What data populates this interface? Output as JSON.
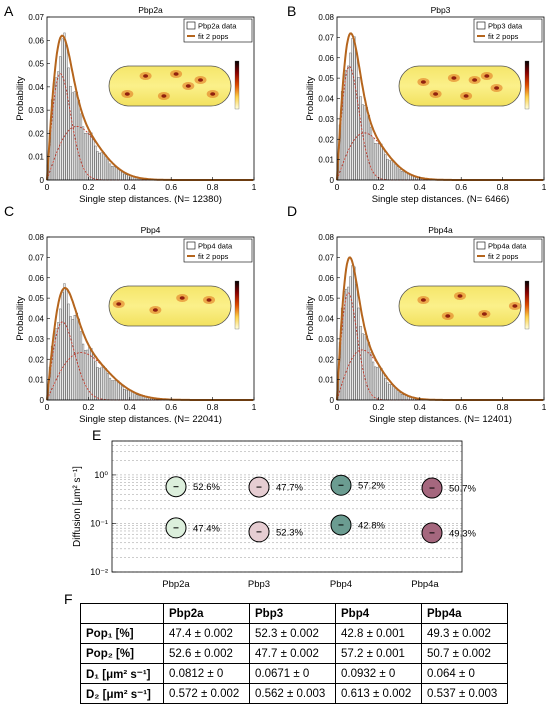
{
  "panels": [
    {
      "letter": "A",
      "title": "Pbp2a",
      "legend": [
        "Pbp2a data",
        "fit 2 pops"
      ],
      "xlabel": "Single step distances. (N= 12380)",
      "ylabel": "Probability"
    },
    {
      "letter": "B",
      "title": "Pbp3",
      "legend": [
        "Pbp3 data",
        "fit 2 pops"
      ],
      "xlabel": "Single step distances. (N= 6466)",
      "ylabel": "Probability"
    },
    {
      "letter": "C",
      "title": "Pbp4",
      "legend": [
        "Pbp4 data",
        "fit 2 pops"
      ],
      "xlabel": "Single step distances. (N= 22041)",
      "ylabel": "Probability"
    },
    {
      "letter": "D",
      "title": "Pbp4a",
      "legend": [
        "Pbp4a data",
        "fit 2 pops"
      ],
      "xlabel": "Single step distances. (N= 12401)",
      "ylabel": "Probability"
    }
  ],
  "panel_e_letter": "E",
  "panel_f_letter": "F",
  "chart_data": [
    {
      "type": "bar",
      "title": "Pbp2a",
      "xlim": [
        0,
        1
      ],
      "ylim": [
        0,
        0.07
      ],
      "xticks": [
        "0",
        "0.2",
        "0.4",
        "0.6",
        "0.8",
        "1"
      ],
      "yticks": [
        "0",
        "0.01",
        "0.02",
        "0.03",
        "0.04",
        "0.05",
        "0.06",
        "0.07"
      ],
      "peak_x": 0.065,
      "peak_y": 0.062,
      "tail_end_x": 0.55,
      "fit": {
        "name": "fit 2 pops",
        "d1": 0.0812,
        "d2": 0.572,
        "p1": 0.474,
        "p2": 0.526
      },
      "colors": {
        "hist": "#ddd",
        "fit": "#b5651d"
      }
    },
    {
      "type": "bar",
      "title": "Pbp3",
      "xlim": [
        0,
        1
      ],
      "ylim": [
        0,
        0.08
      ],
      "xticks": [
        "0",
        "0.2",
        "0.4",
        "0.6",
        "0.8",
        "1"
      ],
      "yticks": [
        "0",
        "0.01",
        "0.02",
        "0.03",
        "0.04",
        "0.05",
        "0.06",
        "0.07",
        "0.08"
      ],
      "peak_x": 0.06,
      "peak_y": 0.072,
      "tail_end_x": 0.55,
      "fit": {
        "name": "fit 2 pops",
        "d1": 0.0671,
        "d2": 0.562,
        "p1": 0.523,
        "p2": 0.477
      },
      "colors": {
        "hist": "#ddd",
        "fit": "#b5651d"
      }
    },
    {
      "type": "bar",
      "title": "Pbp4",
      "xlim": [
        0,
        1
      ],
      "ylim": [
        0,
        0.08
      ],
      "xticks": [
        "0",
        "0.2",
        "0.4",
        "0.6",
        "0.8",
        "1"
      ],
      "yticks": [
        "0",
        "0.01",
        "0.02",
        "0.03",
        "0.04",
        "0.05",
        "0.06",
        "0.07",
        "0.08"
      ],
      "peak_x": 0.075,
      "peak_y": 0.055,
      "tail_end_x": 0.55,
      "fit": {
        "name": "fit 2 pops",
        "d1": 0.0932,
        "d2": 0.613,
        "p1": 0.428,
        "p2": 0.572
      },
      "colors": {
        "hist": "#ddd",
        "fit": "#b5651d"
      }
    },
    {
      "type": "bar",
      "title": "Pbp4a",
      "xlim": [
        0,
        1
      ],
      "ylim": [
        0,
        0.08
      ],
      "xticks": [
        "0",
        "0.2",
        "0.4",
        "0.6",
        "0.8",
        "1"
      ],
      "yticks": [
        "0",
        "0.01",
        "0.02",
        "0.03",
        "0.04",
        "0.05",
        "0.06",
        "0.07",
        "0.08"
      ],
      "peak_x": 0.055,
      "peak_y": 0.07,
      "tail_end_x": 0.55,
      "fit": {
        "name": "fit 2 pops",
        "d1": 0.064,
        "d2": 0.537,
        "p1": 0.493,
        "p2": 0.507
      },
      "colors": {
        "hist": "#ddd",
        "fit": "#b5651d"
      }
    },
    {
      "type": "scatter",
      "ylabel": "Diffusion [μm² s⁻¹]",
      "yscale": "log",
      "ylim": [
        0.01,
        5
      ],
      "yticks": [
        "10⁻²",
        "10⁻¹",
        "10⁰"
      ],
      "categories": [
        "Pbp2a",
        "Pbp3",
        "Pbp4",
        "Pbp4a"
      ],
      "series": [
        {
          "d": [
            0.572,
            0.562,
            0.613,
            0.537
          ],
          "pct": [
            "52.6%",
            "47.7%",
            "57.2%",
            "50.7%"
          ]
        },
        {
          "d": [
            0.0812,
            0.0671,
            0.0932,
            0.064
          ],
          "pct": [
            "47.4%",
            "52.3%",
            "42.8%",
            "49.3%"
          ]
        }
      ],
      "colors": [
        "#dcefdc",
        "#e6cdd2",
        "#6b9c91",
        "#a5677e"
      ]
    }
  ],
  "table": {
    "headers": [
      "",
      "Pbp2a",
      "Pbp3",
      "Pbp4",
      "Pbp4a"
    ],
    "rows": [
      [
        "Pop₁ [%]",
        "47.4 ± 0.002",
        "52.3 ± 0.002",
        "42.8 ± 0.001",
        "49.3 ± 0.002"
      ],
      [
        "Pop₂ [%]",
        "52.6 ± 0.002",
        "47.7 ± 0.002",
        "57.2 ± 0.001",
        "50.7 ± 0.002"
      ],
      [
        "D₁ [μm² s⁻¹]",
        "0.0812 ± 0",
        "0.0671 ± 0",
        "0.0932 ± 0",
        "0.064 ± 0"
      ],
      [
        "D₂ [μm² s⁻¹]",
        "0.572 ± 0.002",
        "0.562 ± 0.003",
        "0.613 ± 0.002",
        "0.537 ± 0.003"
      ]
    ]
  }
}
